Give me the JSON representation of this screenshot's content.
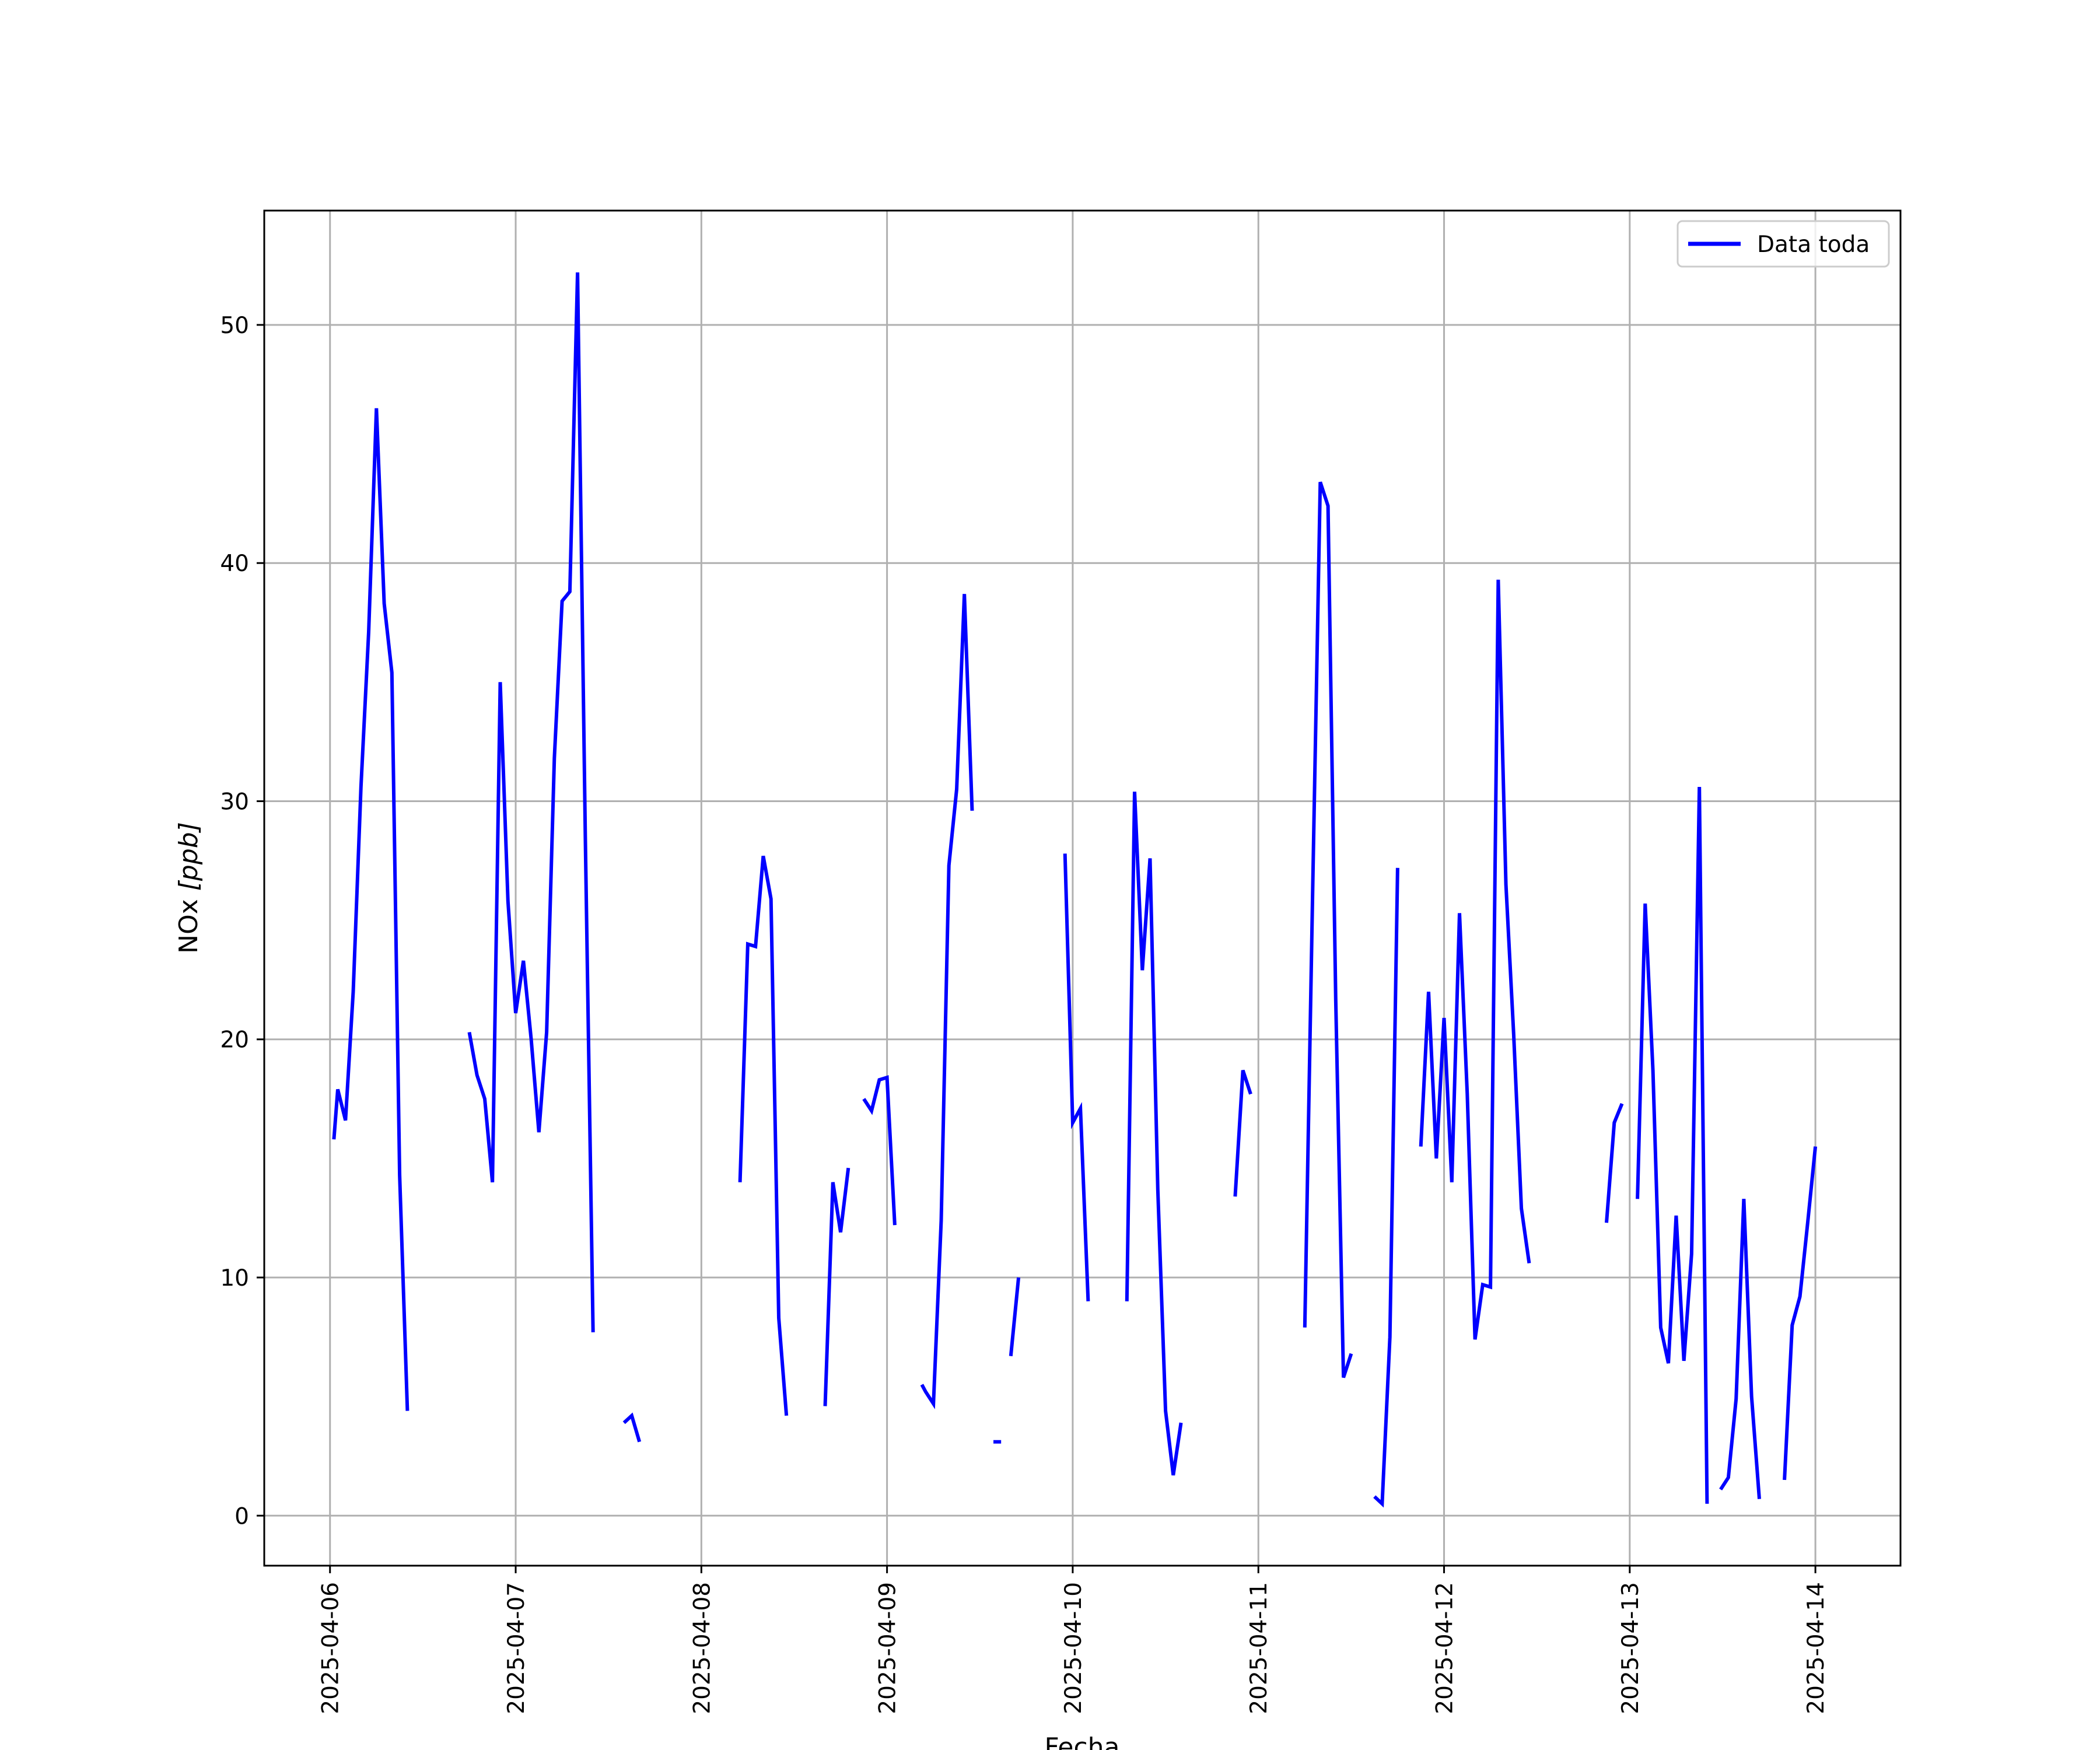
{
  "chart_data": {
    "type": "line",
    "xlabel": "Fecha",
    "ylabel_main": "NOx ",
    "ylabel_unit": "[ppb]",
    "x_ticks": [
      "2025-04-06",
      "2025-04-07",
      "2025-04-08",
      "2025-04-09",
      "2025-04-10",
      "2025-04-11",
      "2025-04-12",
      "2025-04-13",
      "2025-04-14"
    ],
    "y_ticks": [
      0,
      10,
      20,
      30,
      40,
      50
    ],
    "xlim": [
      "2025-04-05 15:30",
      "2025-04-14 11:00"
    ],
    "ylim": [
      -2.1,
      54.8
    ],
    "grid": true,
    "legend_position": "top-right",
    "series": [
      {
        "name": "Data toda",
        "color": "#0000ff",
        "segments": [
          [
            [
              "2025-04-06 00:30",
              15.8
            ],
            [
              "2025-04-06 01:00",
              17.9
            ],
            [
              "2025-04-06 02:00",
              16.6
            ],
            [
              "2025-04-06 03:00",
              22.0
            ],
            [
              "2025-04-06 04:00",
              30.6
            ],
            [
              "2025-04-06 05:00",
              37.1
            ],
            [
              "2025-04-06 06:00",
              46.5
            ],
            [
              "2025-04-06 07:00",
              38.3
            ],
            [
              "2025-04-06 08:00",
              35.4
            ],
            [
              "2025-04-06 09:00",
              14.3
            ],
            [
              "2025-04-06 10:00",
              4.4
            ]
          ],
          [
            [
              "2025-04-06 18:00",
              20.3
            ],
            [
              "2025-04-06 19:00",
              18.5
            ],
            [
              "2025-04-06 20:00",
              17.5
            ],
            [
              "2025-04-06 21:00",
              14.0
            ],
            [
              "2025-04-06 22:00",
              35.0
            ],
            [
              "2025-04-06 23:00",
              25.8
            ],
            [
              "2025-04-07 00:00",
              21.1
            ],
            [
              "2025-04-07 01:00",
              23.3
            ],
            [
              "2025-04-07 02:00",
              20.0
            ],
            [
              "2025-04-07 03:00",
              16.1
            ],
            [
              "2025-04-07 04:00",
              20.3
            ],
            [
              "2025-04-07 05:00",
              31.8
            ],
            [
              "2025-04-07 06:00",
              38.4
            ],
            [
              "2025-04-07 07:00",
              38.8
            ],
            [
              "2025-04-07 08:00",
              52.2
            ],
            [
              "2025-04-07 09:00",
              28.5
            ],
            [
              "2025-04-07 10:00",
              7.7
            ]
          ],
          [
            [
              "2025-04-07 14:00",
              3.9
            ],
            [
              "2025-04-07 15:00",
              4.2
            ],
            [
              "2025-04-07 16:00",
              3.1
            ]
          ],
          [
            [
              "2025-04-08 05:00",
              14.0
            ],
            [
              "2025-04-08 06:00",
              24.0
            ],
            [
              "2025-04-08 07:00",
              23.9
            ],
            [
              "2025-04-08 08:00",
              27.7
            ],
            [
              "2025-04-08 09:00",
              25.9
            ],
            [
              "2025-04-08 10:00",
              8.3
            ],
            [
              "2025-04-08 11:00",
              4.2
            ]
          ],
          [
            [
              "2025-04-08 16:00",
              4.6
            ],
            [
              "2025-04-08 17:00",
              14.0
            ],
            [
              "2025-04-08 18:00",
              11.9
            ],
            [
              "2025-04-08 19:00",
              14.6
            ]
          ],
          [
            [
              "2025-04-08 21:00",
              17.5
            ],
            [
              "2025-04-08 22:00",
              17.0
            ],
            [
              "2025-04-08 23:00",
              18.3
            ],
            [
              "2025-04-09 00:00",
              18.4
            ],
            [
              "2025-04-09 01:00",
              12.2
            ]
          ],
          [
            [
              "2025-04-09 04:30",
              5.5
            ],
            [
              "2025-04-09 05:00",
              5.2
            ],
            [
              "2025-04-09 06:00",
              4.7
            ],
            [
              "2025-04-09 07:00",
              12.4
            ],
            [
              "2025-04-09 08:00",
              27.3
            ],
            [
              "2025-04-09 09:00",
              30.5
            ],
            [
              "2025-04-09 10:00",
              38.7
            ],
            [
              "2025-04-09 11:00",
              29.6
            ]
          ],
          [
            [
              "2025-04-09 13:45",
              3.1
            ],
            [
              "2025-04-09 14:45",
              3.1
            ]
          ],
          [
            [
              "2025-04-09 16:00",
              6.7
            ],
            [
              "2025-04-09 17:00",
              10.0
            ]
          ],
          [
            [
              "2025-04-09 23:00",
              27.8
            ],
            [
              "2025-04-10 00:00",
              16.5
            ],
            [
              "2025-04-10 01:00",
              17.1
            ],
            [
              "2025-04-10 02:00",
              9.0
            ]
          ],
          [
            [
              "2025-04-10 07:00",
              9.0
            ],
            [
              "2025-04-10 08:00",
              30.4
            ],
            [
              "2025-04-10 09:00",
              22.9
            ],
            [
              "2025-04-10 10:00",
              27.6
            ],
            [
              "2025-04-10 11:00",
              13.7
            ],
            [
              "2025-04-10 12:00",
              4.4
            ],
            [
              "2025-04-10 13:00",
              1.7
            ],
            [
              "2025-04-10 14:00",
              3.9
            ]
          ],
          [
            [
              "2025-04-10 21:00",
              13.4
            ],
            [
              "2025-04-10 22:00",
              18.7
            ],
            [
              "2025-04-10 23:00",
              17.7
            ]
          ],
          [
            [
              "2025-04-11 06:00",
              7.9
            ],
            [
              "2025-04-11 07:00",
              26.0
            ],
            [
              "2025-04-11 08:00",
              43.4
            ],
            [
              "2025-04-11 09:00",
              42.4
            ],
            [
              "2025-04-11 10:00",
              21.7
            ],
            [
              "2025-04-11 11:00",
              5.8
            ],
            [
              "2025-04-11 12:00",
              6.8
            ]
          ],
          [
            [
              "2025-04-11 15:00",
              0.8
            ],
            [
              "2025-04-11 16:00",
              0.5
            ],
            [
              "2025-04-11 17:00",
              7.5
            ],
            [
              "2025-04-11 18:00",
              27.2
            ]
          ],
          [
            [
              "2025-04-11 21:00",
              15.5
            ],
            [
              "2025-04-11 22:00",
              22.0
            ],
            [
              "2025-04-11 23:00",
              15.0
            ],
            [
              "2025-04-12 00:00",
              20.9
            ],
            [
              "2025-04-12 01:00",
              14.0
            ],
            [
              "2025-04-12 02:00",
              25.3
            ],
            [
              "2025-04-12 03:00",
              17.7
            ],
            [
              "2025-04-12 04:00",
              7.4
            ],
            [
              "2025-04-12 05:00",
              9.7
            ],
            [
              "2025-04-12 06:00",
              9.6
            ],
            [
              "2025-04-12 07:00",
              39.3
            ],
            [
              "2025-04-12 08:00",
              26.5
            ],
            [
              "2025-04-12 09:00",
              20.2
            ],
            [
              "2025-04-12 10:00",
              12.9
            ],
            [
              "2025-04-12 11:00",
              10.6
            ]
          ],
          [
            [
              "2025-04-12 21:00",
              12.3
            ],
            [
              "2025-04-12 22:00",
              16.5
            ],
            [
              "2025-04-12 23:00",
              17.3
            ]
          ],
          [
            [
              "2025-04-13 01:00",
              13.3
            ],
            [
              "2025-04-13 02:00",
              25.7
            ],
            [
              "2025-04-13 03:00",
              18.7
            ],
            [
              "2025-04-13 04:00",
              7.9
            ],
            [
              "2025-04-13 05:00",
              6.4
            ],
            [
              "2025-04-13 06:00",
              12.6
            ],
            [
              "2025-04-13 07:00",
              6.5
            ],
            [
              "2025-04-13 08:00",
              11.0
            ],
            [
              "2025-04-13 09:00",
              30.6
            ],
            [
              "2025-04-13 10:00",
              0.5
            ]
          ],
          [
            [
              "2025-04-13 11:45",
              1.1
            ],
            [
              "2025-04-13 12:45",
              1.6
            ],
            [
              "2025-04-13 13:45",
              4.9
            ],
            [
              "2025-04-13 14:45",
              13.3
            ],
            [
              "2025-04-13 15:45",
              5.0
            ],
            [
              "2025-04-13 16:45",
              0.7
            ]
          ],
          [
            [
              "2025-04-13 20:00",
              1.5
            ],
            [
              "2025-04-13 21:00",
              8.0
            ],
            [
              "2025-04-13 22:00",
              9.2
            ],
            [
              "2025-04-13 23:00",
              12.3
            ],
            [
              "2025-04-14 00:00",
              15.5
            ]
          ]
        ]
      }
    ]
  }
}
